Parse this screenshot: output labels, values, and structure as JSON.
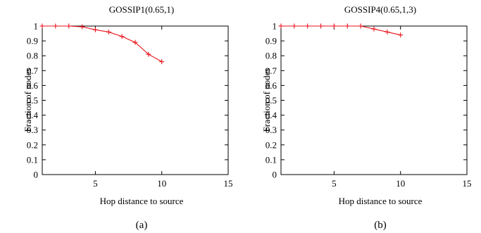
{
  "chart_data": [
    {
      "type": "line",
      "title": "GOSSIP1(0.65,1)",
      "xlabel": "Hop distance to source",
      "ylabel": "Fraction of nodes",
      "caption": "(a)",
      "xlim": [
        1,
        15
      ],
      "ylim": [
        0,
        1
      ],
      "xticks": [
        5,
        10,
        15
      ],
      "yticks": [
        0,
        0.1,
        0.2,
        0.3,
        0.4,
        0.5,
        0.6,
        0.7,
        0.8,
        0.9,
        1
      ],
      "xtick_labels": [
        "5",
        "10",
        "15"
      ],
      "ytick_labels": [
        "0",
        "0.1",
        "0.2",
        "0.3",
        "0.4",
        "0.5",
        "0.6",
        "0.7",
        "0.8",
        "0.9",
        "1"
      ],
      "grid": false,
      "color": "#e8141b",
      "series": [
        {
          "x": [
            1,
            2,
            3,
            4,
            5,
            6,
            7,
            8,
            9,
            10
          ],
          "values": [
            1.0,
            1.0,
            1.0,
            0.995,
            0.975,
            0.96,
            0.93,
            0.89,
            0.81,
            0.76
          ]
        }
      ]
    },
    {
      "type": "line",
      "title": "GOSSIP4(0.65,1,3)",
      "xlabel": "Hop distance to source",
      "ylabel": "Fraction of nodes",
      "caption": "(b)",
      "xlim": [
        1,
        15
      ],
      "ylim": [
        0,
        1
      ],
      "xticks": [
        5,
        10,
        15
      ],
      "yticks": [
        0,
        0.1,
        0.2,
        0.3,
        0.4,
        0.5,
        0.6,
        0.7,
        0.8,
        0.9,
        1
      ],
      "xtick_labels": [
        "5",
        "10",
        "15"
      ],
      "ytick_labels": [
        "0",
        "0.1",
        "0.2",
        "0.3",
        "0.4",
        "0.5",
        "0.6",
        "0.7",
        "0.8",
        "0.9",
        "1"
      ],
      "grid": false,
      "color": "#e8141b",
      "series": [
        {
          "x": [
            1,
            2,
            3,
            4,
            5,
            6,
            7,
            8,
            9,
            10
          ],
          "values": [
            1.0,
            1.0,
            1.0,
            1.0,
            1.0,
            1.0,
            1.0,
            0.98,
            0.96,
            0.94
          ]
        }
      ]
    }
  ]
}
